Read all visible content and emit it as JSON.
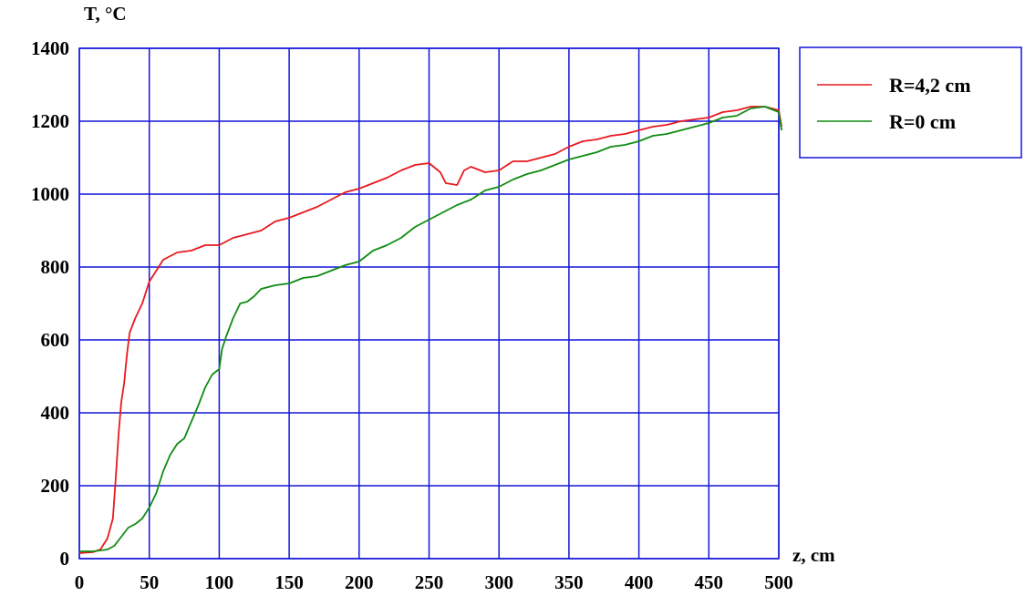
{
  "chart_data": {
    "type": "line",
    "ylabel": "T, °C",
    "xlabel": "z, cm",
    "xlim": [
      0,
      500
    ],
    "ylim": [
      0,
      1400
    ],
    "x_ticks": [
      "0",
      "50",
      "100",
      "150",
      "200",
      "250",
      "300",
      "350",
      "400",
      "450",
      "500"
    ],
    "y_ticks": [
      "0",
      "200",
      "400",
      "600",
      "800",
      "1000",
      "1200",
      "1400"
    ],
    "grid": true,
    "grid_color": "#1414d8",
    "legend_position": "top-right",
    "series": [
      {
        "name": "R=4,2 cm",
        "color": "#e8191e",
        "points": [
          [
            0,
            15
          ],
          [
            10,
            18
          ],
          [
            15,
            25
          ],
          [
            20,
            55
          ],
          [
            24,
            110
          ],
          [
            26,
            220
          ],
          [
            28,
            340
          ],
          [
            30,
            430
          ],
          [
            32,
            480
          ],
          [
            34,
            560
          ],
          [
            36,
            620
          ],
          [
            40,
            660
          ],
          [
            45,
            700
          ],
          [
            50,
            760
          ],
          [
            55,
            790
          ],
          [
            60,
            820
          ],
          [
            70,
            840
          ],
          [
            80,
            845
          ],
          [
            90,
            860
          ],
          [
            100,
            860
          ],
          [
            110,
            880
          ],
          [
            120,
            890
          ],
          [
            130,
            900
          ],
          [
            140,
            925
          ],
          [
            150,
            935
          ],
          [
            160,
            950
          ],
          [
            170,
            965
          ],
          [
            180,
            985
          ],
          [
            190,
            1005
          ],
          [
            200,
            1015
          ],
          [
            210,
            1030
          ],
          [
            220,
            1045
          ],
          [
            230,
            1065
          ],
          [
            240,
            1080
          ],
          [
            250,
            1085
          ],
          [
            258,
            1060
          ],
          [
            262,
            1030
          ],
          [
            270,
            1025
          ],
          [
            275,
            1065
          ],
          [
            280,
            1075
          ],
          [
            290,
            1060
          ],
          [
            300,
            1065
          ],
          [
            310,
            1090
          ],
          [
            320,
            1090
          ],
          [
            330,
            1100
          ],
          [
            340,
            1110
          ],
          [
            350,
            1130
          ],
          [
            360,
            1145
          ],
          [
            370,
            1150
          ],
          [
            380,
            1160
          ],
          [
            390,
            1165
          ],
          [
            400,
            1175
          ],
          [
            410,
            1185
          ],
          [
            420,
            1190
          ],
          [
            430,
            1200
          ],
          [
            440,
            1205
          ],
          [
            450,
            1210
          ],
          [
            460,
            1225
          ],
          [
            470,
            1230
          ],
          [
            480,
            1240
          ],
          [
            490,
            1240
          ],
          [
            500,
            1230
          ],
          [
            502,
            1185
          ]
        ]
      },
      {
        "name": "R=0 cm",
        "color": "#0f8c12",
        "points": [
          [
            0,
            20
          ],
          [
            10,
            20
          ],
          [
            20,
            25
          ],
          [
            25,
            35
          ],
          [
            30,
            60
          ],
          [
            35,
            85
          ],
          [
            40,
            95
          ],
          [
            45,
            110
          ],
          [
            50,
            140
          ],
          [
            55,
            180
          ],
          [
            60,
            240
          ],
          [
            65,
            285
          ],
          [
            70,
            315
          ],
          [
            75,
            330
          ],
          [
            80,
            375
          ],
          [
            85,
            420
          ],
          [
            90,
            470
          ],
          [
            95,
            505
          ],
          [
            100,
            520
          ],
          [
            102,
            575
          ],
          [
            105,
            610
          ],
          [
            110,
            660
          ],
          [
            115,
            700
          ],
          [
            120,
            705
          ],
          [
            125,
            720
          ],
          [
            130,
            740
          ],
          [
            140,
            750
          ],
          [
            150,
            755
          ],
          [
            160,
            770
          ],
          [
            170,
            775
          ],
          [
            180,
            790
          ],
          [
            190,
            805
          ],
          [
            200,
            815
          ],
          [
            210,
            845
          ],
          [
            220,
            860
          ],
          [
            230,
            880
          ],
          [
            240,
            910
          ],
          [
            250,
            930
          ],
          [
            260,
            950
          ],
          [
            270,
            970
          ],
          [
            280,
            985
          ],
          [
            290,
            1010
          ],
          [
            300,
            1020
          ],
          [
            310,
            1040
          ],
          [
            320,
            1055
          ],
          [
            330,
            1065
          ],
          [
            340,
            1080
          ],
          [
            350,
            1095
          ],
          [
            360,
            1105
          ],
          [
            370,
            1115
          ],
          [
            380,
            1130
          ],
          [
            390,
            1135
          ],
          [
            400,
            1145
          ],
          [
            410,
            1160
          ],
          [
            420,
            1165
          ],
          [
            430,
            1175
          ],
          [
            440,
            1185
          ],
          [
            450,
            1195
          ],
          [
            460,
            1210
          ],
          [
            470,
            1215
          ],
          [
            480,
            1235
          ],
          [
            490,
            1240
          ],
          [
            500,
            1225
          ],
          [
            502,
            1175
          ]
        ]
      }
    ]
  }
}
